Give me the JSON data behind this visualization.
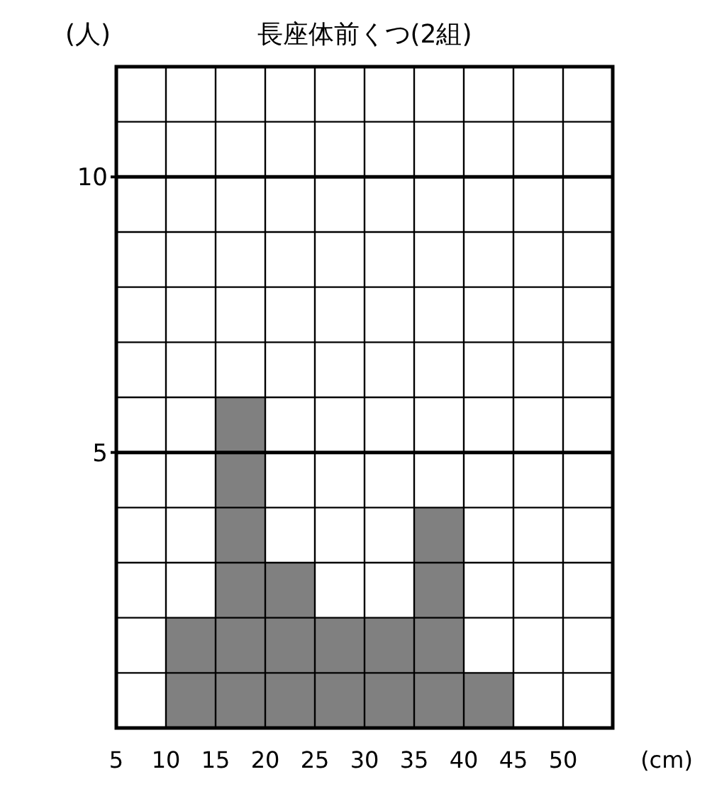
{
  "chart_data": {
    "type": "histogram",
    "title": "長座体前くつ(2組)",
    "xlabel": "(cm)",
    "ylabel": "(人)",
    "bins": [
      5,
      10,
      15,
      20,
      25,
      30,
      35,
      40,
      45,
      50,
      55
    ],
    "values": [
      0,
      2,
      6,
      3,
      2,
      2,
      4,
      1,
      0,
      0
    ],
    "color": "#808080",
    "xlim": [
      5,
      55
    ],
    "xticks": [
      5,
      10,
      15,
      20,
      25,
      30,
      35,
      40,
      45,
      50,
      {
        "value": 55,
        "label": null
      }
    ],
    "ylim": [
      0,
      12
    ],
    "yticks": [
      {
        "value": 0,
        "label": null
      },
      {
        "value": 1,
        "label": null
      },
      {
        "value": 2,
        "label": null
      },
      {
        "value": 3,
        "label": null
      },
      {
        "value": 4,
        "label": null
      },
      5,
      {
        "value": 6,
        "label": null
      },
      {
        "value": 7,
        "label": null
      },
      {
        "value": 8,
        "label": null
      },
      {
        "value": 9,
        "label": null
      },
      10,
      {
        "value": 11,
        "label": null
      },
      {
        "value": 12,
        "label": null
      }
    ],
    "grid": true
  }
}
